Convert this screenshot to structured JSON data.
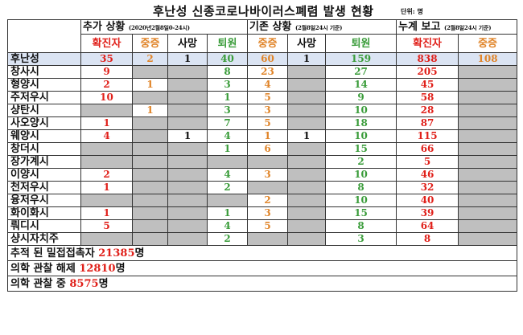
{
  "title": "후난성 신종코로나바이러스폐렴 발생 현황",
  "unit": "단위: 명",
  "groups": {
    "added": {
      "label": "추가 상황",
      "note": "(2020년2월8일0-24시)"
    },
    "existing": {
      "label": "기존 상황",
      "note": "(2월8일24시 기준)"
    },
    "cumulative": {
      "label": "누계 보고",
      "note": "(2월8일24시 기준)"
    }
  },
  "subheaders": {
    "confirmed": "확진자",
    "severe": "중증",
    "death": "사망",
    "discharged": "퇴원"
  },
  "colors": {
    "confirmed": "#e0201a",
    "severe": "#e08428",
    "discharged": "#3a9c3a",
    "grey_cell": "#bfbfbf",
    "highlight_row": "#dbe4f3"
  },
  "rows": [
    {
      "region": "후난성",
      "a_conf": "35",
      "a_sev": "2",
      "a_death": "1",
      "a_dis": "40",
      "e_sev": "60",
      "e_death": "1",
      "e_dis": "159",
      "c_conf": "838",
      "c_sev": "108"
    },
    {
      "region": "창사시",
      "a_conf": "9",
      "a_sev": "",
      "a_death": "",
      "a_dis": "8",
      "e_sev": "23",
      "e_death": "",
      "e_dis": "27",
      "c_conf": "205",
      "c_sev": ""
    },
    {
      "region": "형양시",
      "a_conf": "2",
      "a_sev": "1",
      "a_death": "",
      "a_dis": "3",
      "e_sev": "4",
      "e_death": "",
      "e_dis": "14",
      "c_conf": "45",
      "c_sev": ""
    },
    {
      "region": "주저우시",
      "a_conf": "10",
      "a_sev": "",
      "a_death": "",
      "a_dis": "1",
      "e_sev": "5",
      "e_death": "",
      "e_dis": "9",
      "c_conf": "58",
      "c_sev": ""
    },
    {
      "region": "샹탄시",
      "a_conf": "",
      "a_sev": "1",
      "a_death": "",
      "a_dis": "3",
      "e_sev": "3",
      "e_death": "",
      "e_dis": "10",
      "c_conf": "28",
      "c_sev": ""
    },
    {
      "region": "사오양시",
      "a_conf": "1",
      "a_sev": "",
      "a_death": "",
      "a_dis": "7",
      "e_sev": "5",
      "e_death": "",
      "e_dis": "18",
      "c_conf": "87",
      "c_sev": ""
    },
    {
      "region": "웨양시",
      "a_conf": "4",
      "a_sev": "",
      "a_death": "1",
      "a_dis": "4",
      "e_sev": "1",
      "e_death": "1",
      "e_dis": "10",
      "c_conf": "115",
      "c_sev": ""
    },
    {
      "region": "창더시",
      "a_conf": "",
      "a_sev": "",
      "a_death": "",
      "a_dis": "1",
      "e_sev": "6",
      "e_death": "",
      "e_dis": "15",
      "c_conf": "66",
      "c_sev": ""
    },
    {
      "region": "장가계시",
      "a_conf": "",
      "a_sev": "",
      "a_death": "",
      "a_dis": "",
      "e_sev": "",
      "e_death": "",
      "e_dis": "2",
      "c_conf": "5",
      "c_sev": ""
    },
    {
      "region": "이양시",
      "a_conf": "2",
      "a_sev": "",
      "a_death": "",
      "a_dis": "4",
      "e_sev": "3",
      "e_death": "",
      "e_dis": "10",
      "c_conf": "46",
      "c_sev": ""
    },
    {
      "region": "천저우시",
      "a_conf": "1",
      "a_sev": "",
      "a_death": "",
      "a_dis": "2",
      "e_sev": "",
      "e_death": "",
      "e_dis": "8",
      "c_conf": "32",
      "c_sev": ""
    },
    {
      "region": "융저우시",
      "a_conf": "",
      "a_sev": "",
      "a_death": "",
      "a_dis": "",
      "e_sev": "2",
      "e_death": "",
      "e_dis": "10",
      "c_conf": "40",
      "c_sev": ""
    },
    {
      "region": "화이화시",
      "a_conf": "1",
      "a_sev": "",
      "a_death": "",
      "a_dis": "1",
      "e_sev": "3",
      "e_death": "",
      "e_dis": "15",
      "c_conf": "39",
      "c_sev": ""
    },
    {
      "region": "뤄디시",
      "a_conf": "5",
      "a_sev": "",
      "a_death": "",
      "a_dis": "4",
      "e_sev": "5",
      "e_death": "",
      "e_dis": "8",
      "c_conf": "64",
      "c_sev": ""
    },
    {
      "region": "샹시자치주",
      "a_conf": "",
      "a_sev": "",
      "a_death": "",
      "a_dis": "2",
      "e_sev": "",
      "e_death": "",
      "e_dis": "3",
      "c_conf": "8",
      "c_sev": ""
    }
  ],
  "footer": [
    {
      "label": "추적 된 밀접접촉자 ",
      "value": "21385",
      "suffix": "명"
    },
    {
      "label": "의학 관찰 해제 ",
      "value": "12810",
      "suffix": "명"
    },
    {
      "label": "의학 관찰 중 ",
      "value": "8575",
      "suffix": "명"
    }
  ]
}
